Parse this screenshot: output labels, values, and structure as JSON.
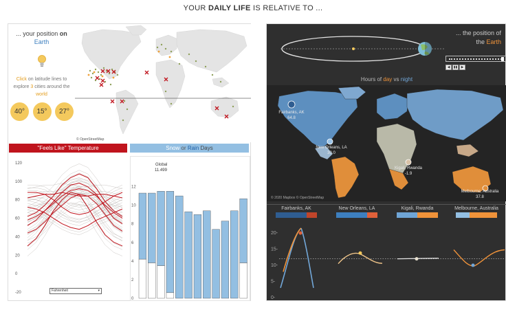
{
  "title": {
    "pre": "YOUR ",
    "bold": "DAILY LIFE",
    "post": " IS RELATIVE TO ..."
  },
  "left": {
    "pos_title_pre": "... your position ",
    "pos_title_on": "on",
    "pos_title_earth": "Earth",
    "click_1": "Click",
    "click_2": " on latitude lines to explore ",
    "click_3": "3",
    "click_4": " cities around the ",
    "click_5": "world",
    "temps": [
      "40°",
      "15°",
      "27°"
    ],
    "osm_credit": "© OpenStreetMap",
    "feels_like_header": "\"Feels Like\" Temperature",
    "snow_label": "Snow",
    "or_label": " or ",
    "rain_label": "Rain",
    "days_label": " Days",
    "unit_select": "Fahrenheit",
    "unit_arrow": "▾"
  },
  "right": {
    "pos_title_1": "... the position of",
    "pos_title_the": "the ",
    "pos_title_earth": "Earth",
    "player_buttons": [
      "◀",
      "▮▮",
      "▶"
    ],
    "hours_pre": "Hours of ",
    "hours_day": "day",
    "hours_vs": " vs ",
    "hours_night": "night",
    "mapbox_credit": "© 2020 Mapbox  © OpenStreetMap",
    "cities": [
      {
        "name": "Fairbanks, AK",
        "value": "64.8"
      },
      {
        "name": "New Orleans, LA",
        "value": "30.0"
      },
      {
        "name": "Kigali, Rwanda",
        "value": "-1.9"
      },
      {
        "name": "Melbourne, Australia",
        "value": "37.8"
      }
    ]
  },
  "colors": {
    "red": "#c0141d",
    "blue": "#93bfe2",
    "orange": "#f0933a",
    "night_blue": "#5d8fbf",
    "gold": "#f4c95d"
  },
  "chart_data": [
    {
      "type": "line",
      "title": "\"Feels Like\" Temperature",
      "ylim": [
        -20,
        120
      ],
      "yticks": [
        "120",
        "100",
        "80",
        "60",
        "40",
        "20",
        "0",
        "-20"
      ],
      "series_highlight": [
        {
          "values": [
            30,
            38,
            52,
            68,
            80,
            88,
            86,
            72,
            56,
            42,
            34,
            30
          ]
        },
        {
          "values": [
            52,
            58,
            68,
            78,
            88,
            96,
            98,
            94,
            86,
            72,
            60,
            54
          ]
        },
        {
          "values": [
            82,
            84,
            86,
            86,
            88,
            86,
            84,
            84,
            86,
            86,
            84,
            82
          ]
        },
        {
          "values": [
            72,
            70,
            66,
            60,
            54,
            50,
            48,
            52,
            58,
            62,
            66,
            70
          ]
        },
        {
          "values": [
            62,
            66,
            74,
            84,
            96,
            104,
            108,
            104,
            92,
            78,
            68,
            62
          ]
        },
        {
          "values": [
            58,
            62,
            68,
            76,
            84,
            90,
            92,
            90,
            84,
            74,
            66,
            60
          ]
        },
        {
          "values": [
            88,
            88,
            86,
            80,
            72,
            66,
            64,
            66,
            72,
            78,
            84,
            88
          ]
        },
        {
          "values": [
            44,
            48,
            56,
            66,
            74,
            82,
            86,
            84,
            76,
            64,
            52,
            46
          ]
        }
      ]
    },
    {
      "type": "bar",
      "title": "Snow or Rain Days",
      "ylim": [
        0,
        13
      ],
      "yticks": [
        "12",
        "10",
        "8",
        "6",
        "4",
        "2",
        "0"
      ],
      "annotation": {
        "label": "Global",
        "value": "11.499"
      },
      "series": [
        {
          "name": "Rain",
          "values": [
            7.1,
            7.5,
            8.0,
            10.9,
            11.0,
            9.3,
            9.0,
            9.4,
            7.4,
            8.3,
            9.4,
            6.9
          ]
        },
        {
          "name": "Snow",
          "values": [
            4.2,
            3.8,
            3.5,
            0.6,
            0.0,
            0.0,
            0.0,
            0.0,
            0.0,
            0.0,
            0.0,
            3.8
          ]
        }
      ]
    },
    {
      "type": "line",
      "title": "Hours of day vs night",
      "ylim": [
        0,
        23
      ],
      "yticks": [
        "20",
        "15",
        "10",
        "5",
        "0"
      ],
      "reference_value": 12
    }
  ]
}
